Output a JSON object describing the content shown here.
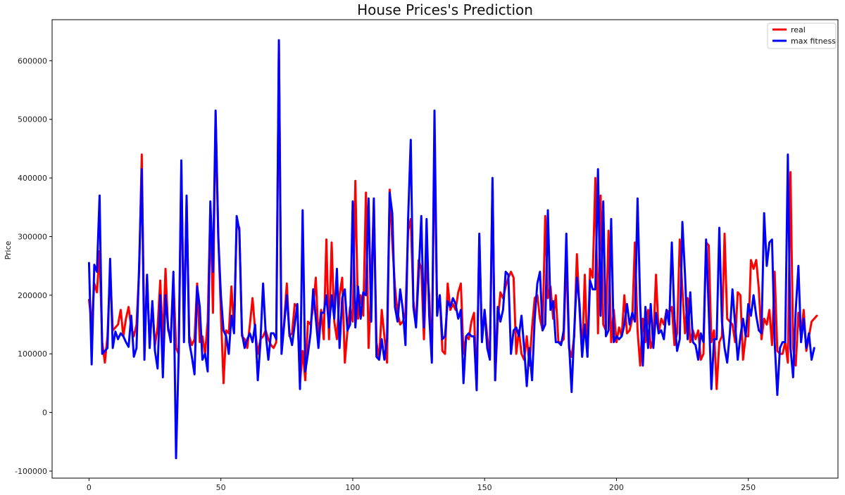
{
  "chart_data": {
    "type": "line",
    "title": "House Prices's Prediction",
    "xlabel": "",
    "ylabel": "Price",
    "xlim": [
      -14,
      284
    ],
    "ylim": [
      -112000,
      670000
    ],
    "x_ticks": [
      0,
      50,
      100,
      150,
      200,
      250
    ],
    "y_ticks": [
      -100000,
      0,
      100000,
      200000,
      300000,
      400000,
      500000,
      600000
    ],
    "grid": false,
    "legend_position": "top-right",
    "series": [
      {
        "name": "real",
        "color": "#ff0000",
        "values": [
          192000,
          150000,
          220000,
          205000,
          275000,
          120000,
          85000,
          130000,
          245000,
          140000,
          145000,
          150000,
          175000,
          130000,
          160000,
          180000,
          145000,
          130000,
          150000,
          240000,
          440000,
          110000,
          230000,
          115000,
          185000,
          115000,
          145000,
          225000,
          120000,
          245000,
          140000,
          130000,
          230000,
          110000,
          100000,
          410000,
          140000,
          360000,
          130000,
          115000,
          125000,
          220000,
          120000,
          130000,
          100000,
          155000,
          350000,
          170000,
          510000,
          305000,
          170000,
          50000,
          140000,
          135000,
          215000,
          140000,
          325000,
          315000,
          130000,
          125000,
          110000,
          150000,
          195000,
          140000,
          100000,
          125000,
          130000,
          140000,
          125000,
          115000,
          110000,
          120000,
          630000,
          110000,
          155000,
          220000,
          130000,
          135000,
          185000,
          180000,
          50000,
          105000,
          55000,
          155000,
          150000,
          180000,
          230000,
          125000,
          175000,
          125000,
          295000,
          125000,
          290000,
          155000,
          125000,
          200000,
          230000,
          85000,
          140000,
          180000,
          155000,
          395000,
          160000,
          200000,
          165000,
          375000,
          110000,
          215000,
          360000,
          120000,
          90000,
          175000,
          130000,
          85000,
          380000,
          290000,
          215000,
          170000,
          150000,
          155000,
          170000,
          310000,
          330000,
          190000,
          150000,
          260000,
          245000,
          125000,
          255000,
          200000,
          90000,
          460000,
          170000,
          200000,
          105000,
          100000,
          220000,
          175000,
          185000,
          175000,
          205000,
          220000,
          100000,
          130000,
          125000,
          155000,
          170000,
          40000,
          300000,
          125000,
          175000,
          130000,
          95000,
          395000,
          55000,
          155000,
          205000,
          195000,
          215000,
          230000,
          240000,
          230000,
          100000,
          140000,
          100000,
          90000,
          130000,
          80000,
          145000,
          195000,
          200000,
          160000,
          140000,
          335000,
          195000,
          215000,
          160000,
          200000,
          120000,
          120000,
          125000,
          270000,
          110000,
          95000,
          130000,
          270000,
          175000,
          95000,
          235000,
          95000,
          245000,
          230000,
          400000,
          135000,
          370000,
          150000,
          140000,
          310000,
          120000,
          175000,
          120000,
          145000,
          130000,
          200000,
          135000,
          140000,
          160000,
          290000,
          140000,
          80000,
          160000,
          120000,
          175000,
          110000,
          125000,
          235000,
          135000,
          160000,
          150000,
          175000,
          170000,
          180000,
          115000,
          135000,
          295000,
          210000,
          135000,
          195000,
          120000,
          140000,
          125000,
          140000,
          90000,
          100000,
          290000,
          285000,
          120000,
          140000,
          40000,
          120000,
          130000,
          305000,
          160000,
          155000,
          150000,
          120000,
          205000,
          200000,
          90000,
          130000,
          130000,
          260000,
          245000,
          260000,
          210000,
          125000,
          160000,
          150000,
          175000,
          115000,
          240000,
          105000,
          100000,
          100000,
          120000,
          85000,
          410000,
          110000,
          80000,
          170000,
          130000,
          175000,
          105000,
          130000,
          155000,
          160000,
          165000
        ]
      },
      {
        "name": "max fitness",
        "color": "#0000ff",
        "values": [
          255000,
          82000,
          252000,
          240000,
          370000,
          100000,
          105000,
          110000,
          262000,
          110000,
          138000,
          125000,
          135000,
          130000,
          120000,
          112000,
          165000,
          95000,
          110000,
          250000,
          415000,
          90000,
          235000,
          110000,
          190000,
          105000,
          75000,
          200000,
          60000,
          200000,
          145000,
          120000,
          240000,
          -78000,
          100000,
          430000,
          120000,
          370000,
          120000,
          95000,
          65000,
          215000,
          180000,
          90000,
          100000,
          70000,
          360000,
          240000,
          515000,
          300000,
          200000,
          140000,
          130000,
          100000,
          165000,
          135000,
          335000,
          310000,
          135000,
          110000,
          125000,
          135000,
          120000,
          150000,
          55000,
          120000,
          220000,
          135000,
          90000,
          135000,
          135000,
          125000,
          635000,
          100000,
          150000,
          200000,
          135000,
          115000,
          150000,
          185000,
          40000,
          345000,
          70000,
          100000,
          135000,
          210000,
          160000,
          110000,
          170000,
          170000,
          200000,
          145000,
          200000,
          160000,
          245000,
          110000,
          195000,
          210000,
          140000,
          150000,
          360000,
          145000,
          215000,
          160000,
          205000,
          200000,
          365000,
          155000,
          365000,
          95000,
          90000,
          125000,
          90000,
          125000,
          375000,
          340000,
          180000,
          155000,
          210000,
          175000,
          115000,
          330000,
          465000,
          180000,
          145000,
          235000,
          335000,
          145000,
          330000,
          165000,
          85000,
          515000,
          165000,
          200000,
          125000,
          130000,
          190000,
          180000,
          195000,
          185000,
          160000,
          175000,
          50000,
          130000,
          135000,
          130000,
          130000,
          38000,
          305000,
          120000,
          175000,
          110000,
          90000,
          400000,
          55000,
          180000,
          155000,
          175000,
          240000,
          235000,
          100000,
          140000,
          145000,
          130000,
          165000,
          110000,
          45000,
          110000,
          55000,
          160000,
          220000,
          240000,
          140000,
          150000,
          345000,
          175000,
          190000,
          120000,
          120000,
          115000,
          140000,
          305000,
          120000,
          35000,
          140000,
          230000,
          185000,
          95000,
          150000,
          95000,
          225000,
          210000,
          210000,
          415000,
          165000,
          360000,
          130000,
          140000,
          330000,
          120000,
          130000,
          125000,
          130000,
          150000,
          185000,
          150000,
          170000,
          155000,
          365000,
          185000,
          80000,
          180000,
          110000,
          185000,
          110000,
          170000,
          135000,
          140000,
          125000,
          175000,
          150000,
          290000,
          160000,
          105000,
          125000,
          325000,
          235000,
          125000,
          205000,
          120000,
          115000,
          90000,
          135000,
          120000,
          295000,
          175000,
          40000,
          125000,
          125000,
          315000,
          155000,
          110000,
          85000,
          135000,
          210000,
          150000,
          90000,
          130000,
          160000,
          130000,
          185000,
          165000,
          200000,
          165000,
          140000,
          135000,
          340000,
          250000,
          290000,
          295000,
          120000,
          30000,
          110000,
          120000,
          120000,
          440000,
          110000,
          60000,
          175000,
          250000,
          120000,
          160000,
          110000,
          135000,
          90000,
          110000
        ]
      }
    ]
  }
}
